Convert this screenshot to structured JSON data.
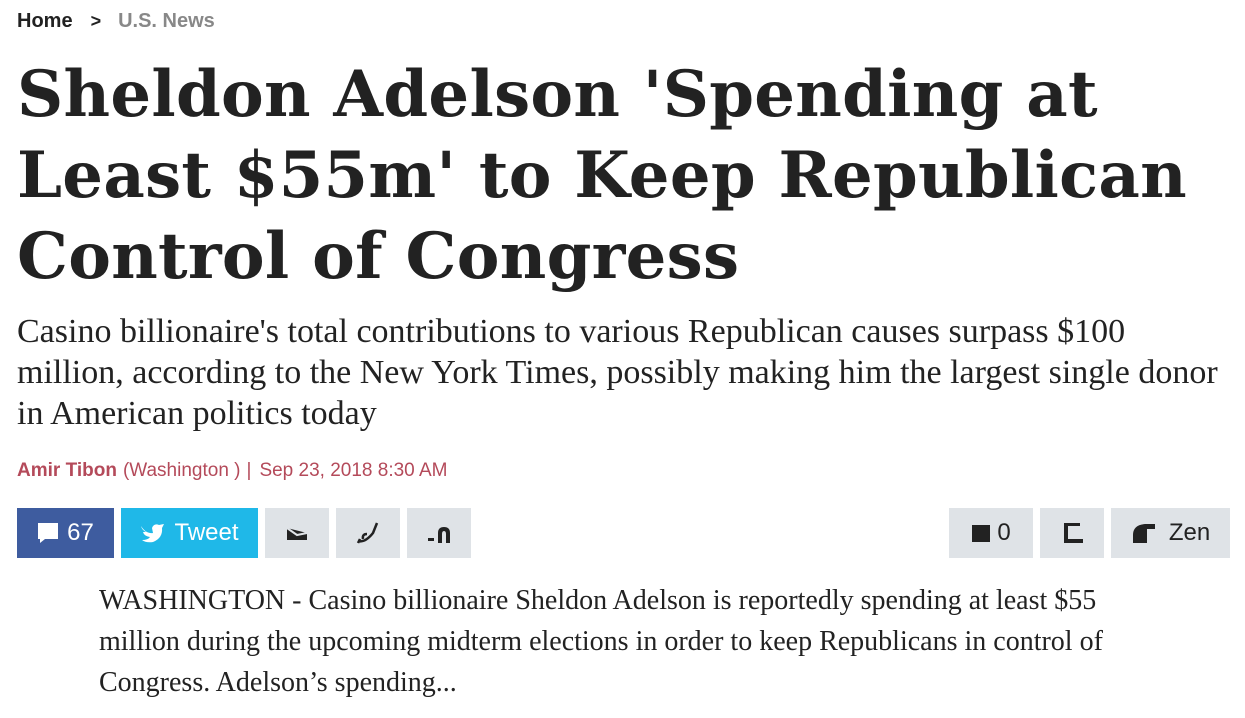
{
  "breadcrumb": {
    "home": "Home",
    "separator": ">",
    "section": "U.S. News"
  },
  "article": {
    "headline": "Sheldon Adelson 'Spending at Least $55m' to Keep Republican Control of Congress",
    "subhead": "Casino billionaire's total contributions to various Republican causes surpass $100 million, according to the New York Times, possibly making him the largest single donor in American politics today",
    "byline": {
      "author": "Amir Tibon",
      "location": "(Washington )",
      "separator": "|",
      "date": "Sep 23, 2018 8:30 AM"
    },
    "body": "WASHINGTON - Casino billionaire Sheldon Adelson is reportedly spending at least $55 million during the upcoming midterm elections in order to keep Republicans in control of Congress. Adelson’s spending..."
  },
  "share_bar": {
    "comments_count": "67",
    "tweet_label": "Tweet",
    "saved_count": "0",
    "zen_label": "Zen"
  },
  "colors": {
    "facebook_blue": "#3e5c9f",
    "twitter_blue": "#1fb8e8",
    "button_grey": "#dfe3e7",
    "byline_red": "#b44a5a",
    "breadcrumb_grey": "#888888"
  },
  "icons": [
    "comment-bubble-icon",
    "twitter-bird-icon",
    "email-icon",
    "whatsapp-icon",
    "more-share-icon",
    "bookmark-icon",
    "print-icon",
    "zen-mode-icon"
  ]
}
